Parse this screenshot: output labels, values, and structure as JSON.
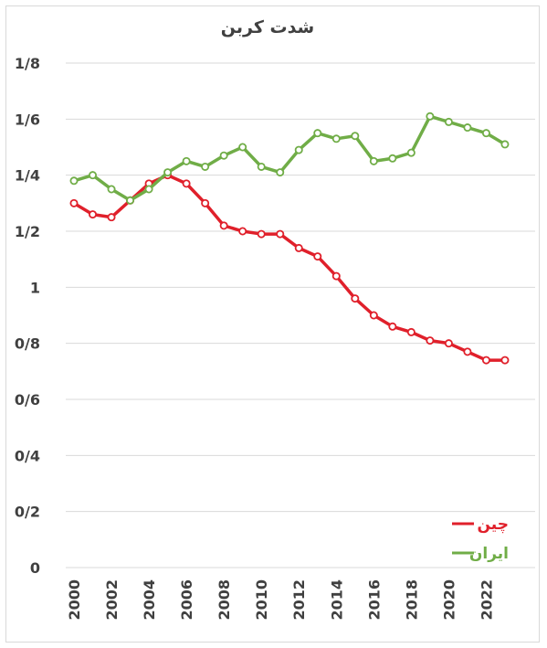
{
  "chart_data": {
    "type": "line",
    "title": "شدت کربن",
    "xlabel": "",
    "ylabel": "",
    "ylim": [
      0,
      1.8
    ],
    "y_ticks": [
      0,
      0.2,
      0.4,
      0.6,
      0.8,
      1.0,
      1.2,
      1.4,
      1.6,
      1.8
    ],
    "y_tick_labels": [
      "0",
      "0/2",
      "0/4",
      "0/6",
      "0/8",
      "1",
      "1/2",
      "1/4",
      "1/6",
      "1/8"
    ],
    "x": [
      2000,
      2001,
      2002,
      2003,
      2004,
      2005,
      2006,
      2007,
      2008,
      2009,
      2010,
      2011,
      2012,
      2013,
      2014,
      2015,
      2016,
      2017,
      2018,
      2019,
      2020,
      2021,
      2022,
      2023
    ],
    "x_tick_labels": [
      "2000",
      "2002",
      "2004",
      "2006",
      "2008",
      "2010",
      "2012",
      "2014",
      "2016",
      "2018",
      "2020",
      "2022"
    ],
    "grid": true,
    "legend_position": "bottom-right",
    "series": [
      {
        "name": "چین",
        "color": "#e0202b",
        "values": [
          1.3,
          1.26,
          1.25,
          1.31,
          1.37,
          1.4,
          1.37,
          1.3,
          1.22,
          1.2,
          1.19,
          1.19,
          1.14,
          1.11,
          1.04,
          0.96,
          0.9,
          0.86,
          0.84,
          0.81,
          0.8,
          0.77,
          0.74,
          0.74
        ]
      },
      {
        "name": "ایران",
        "color": "#70ad47",
        "values": [
          1.38,
          1.4,
          1.35,
          1.31,
          1.35,
          1.41,
          1.45,
          1.43,
          1.47,
          1.5,
          1.43,
          1.41,
          1.49,
          1.55,
          1.53,
          1.54,
          1.45,
          1.46,
          1.48,
          1.61,
          1.59,
          1.57,
          1.55,
          1.51
        ]
      }
    ]
  }
}
